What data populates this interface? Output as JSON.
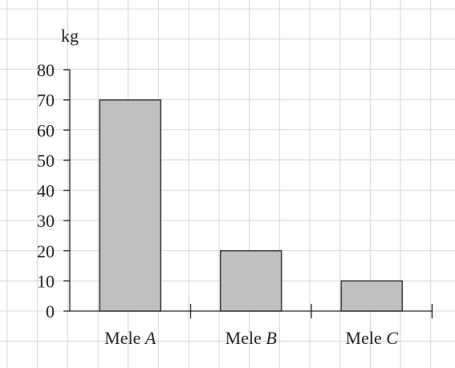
{
  "chart_data": {
    "type": "bar",
    "categories": [
      {
        "prefix": "Mele ",
        "letter": "A"
      },
      {
        "prefix": "Mele ",
        "letter": "B"
      },
      {
        "prefix": "Mele ",
        "letter": "C"
      }
    ],
    "values": [
      70,
      20,
      10
    ],
    "ylabel": "kg",
    "ylim": [
      0,
      80
    ],
    "yticks": [
      "0",
      "10",
      "20",
      "30",
      "40",
      "50",
      "60",
      "70",
      "80"
    ],
    "grid": true,
    "bar_color": "#bfbfbf",
    "axis_color": "#231f20",
    "grid_color": "#d4d4d4"
  }
}
